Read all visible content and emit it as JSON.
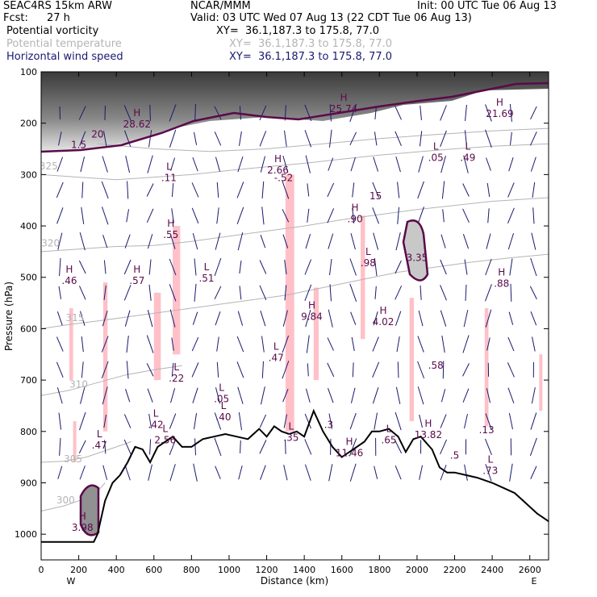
{
  "header": {
    "model": "SEAC4RS 15km ARW",
    "org": "NCAR/MMM",
    "init": "Init: 00 UTC Tue 06 Aug 13",
    "fcst_label": "Fcst:",
    "fcst_value": "27 h",
    "valid": "Valid: 03 UTC Wed 07 Aug 13 (22 CDT Tue 06 Aug 13)",
    "fields": [
      {
        "name": "Potential vorticity",
        "xy": "XY=  36.1,187.3 to 175.8, 77.0",
        "color": "#000000"
      },
      {
        "name": "Potential temperature",
        "xy": "XY=  36.1,187.3 to 175.8, 77.0",
        "color": "#b4b4b4"
      },
      {
        "name": "Horizontal wind speed",
        "xy": "XY=  36.1,187.3 to 175.8, 77.0",
        "color": "#191970"
      }
    ]
  },
  "chart_data": {
    "type": "contour_cross_section",
    "xlabel": "Distance (km)",
    "ylabel": "Pressure (hPa)",
    "xlim": [
      0,
      2700
    ],
    "ylim": [
      1050,
      100
    ],
    "x_ticks": [
      "0",
      "200",
      "400",
      "600",
      "800",
      "1000",
      "1200",
      "1400",
      "1600",
      "1800",
      "2000",
      "2200",
      "2400",
      "2600"
    ],
    "y_ticks": [
      "100",
      "200",
      "300",
      "400",
      "500",
      "600",
      "700",
      "800",
      "900",
      "1000"
    ],
    "x_end_labels": {
      "left": "W",
      "right": "E"
    },
    "theta_labels": [
      {
        "text": "325",
        "x": 40,
        "p": 290
      },
      {
        "text": "320",
        "x": 50,
        "p": 440
      },
      {
        "text": "315",
        "x": 180,
        "p": 585
      },
      {
        "text": "310",
        "x": 200,
        "p": 715
      },
      {
        "text": "305",
        "x": 170,
        "p": 860
      },
      {
        "text": "300",
        "x": 130,
        "p": 940
      }
    ],
    "terrain": [
      [
        0,
        1015
      ],
      [
        280,
        1015
      ],
      [
        300,
        1000
      ],
      [
        340,
        935
      ],
      [
        380,
        900
      ],
      [
        420,
        885
      ],
      [
        460,
        860
      ],
      [
        500,
        830
      ],
      [
        540,
        835
      ],
      [
        580,
        860
      ],
      [
        620,
        830
      ],
      [
        660,
        820
      ],
      [
        700,
        810
      ],
      [
        750,
        830
      ],
      [
        800,
        830
      ],
      [
        860,
        815
      ],
      [
        920,
        810
      ],
      [
        980,
        805
      ],
      [
        1040,
        810
      ],
      [
        1100,
        815
      ],
      [
        1160,
        795
      ],
      [
        1200,
        810
      ],
      [
        1240,
        790
      ],
      [
        1280,
        800
      ],
      [
        1320,
        805
      ],
      [
        1360,
        800
      ],
      [
        1400,
        810
      ],
      [
        1450,
        760
      ],
      [
        1500,
        800
      ],
      [
        1550,
        830
      ],
      [
        1600,
        850
      ],
      [
        1660,
        835
      ],
      [
        1720,
        820
      ],
      [
        1760,
        800
      ],
      [
        1800,
        800
      ],
      [
        1850,
        795
      ],
      [
        1900,
        810
      ],
      [
        1940,
        840
      ],
      [
        1980,
        815
      ],
      [
        2020,
        810
      ],
      [
        2080,
        835
      ],
      [
        2120,
        870
      ],
      [
        2160,
        880
      ],
      [
        2200,
        880
      ],
      [
        2260,
        885
      ],
      [
        2320,
        890
      ],
      [
        2400,
        900
      ],
      [
        2460,
        910
      ],
      [
        2520,
        920
      ],
      [
        2580,
        940
      ],
      [
        2640,
        960
      ],
      [
        2700,
        975
      ]
    ],
    "theta_isentropes": [
      {
        "theta": 300,
        "points": [
          [
            0,
            955
          ],
          [
            120,
            945
          ],
          [
            200,
            935
          ],
          [
            280,
            925
          ],
          [
            340,
            900
          ]
        ]
      },
      {
        "theta": 305,
        "points": [
          [
            0,
            860
          ],
          [
            120,
            858
          ],
          [
            240,
            850
          ],
          [
            360,
            835
          ],
          [
            480,
            820
          ]
        ]
      },
      {
        "theta": 310,
        "points": [
          [
            0,
            730
          ],
          [
            150,
            720
          ],
          [
            300,
            705
          ],
          [
            450,
            690
          ],
          [
            600,
            680
          ],
          [
            750,
            672
          ]
        ]
      },
      {
        "theta": 315,
        "points": [
          [
            0,
            600
          ],
          [
            150,
            592
          ],
          [
            300,
            585
          ],
          [
            500,
            575
          ],
          [
            700,
            565
          ],
          [
            900,
            555
          ],
          [
            1100,
            545
          ],
          [
            1300,
            535
          ],
          [
            1500,
            520
          ],
          [
            1700,
            505
          ],
          [
            1900,
            490
          ],
          [
            2100,
            480
          ],
          [
            2300,
            470
          ],
          [
            2500,
            462
          ],
          [
            2700,
            455
          ]
        ]
      },
      {
        "theta": 320,
        "points": [
          [
            0,
            450
          ],
          [
            200,
            445
          ],
          [
            400,
            440
          ],
          [
            600,
            438
          ],
          [
            800,
            430
          ],
          [
            1000,
            420
          ],
          [
            1200,
            410
          ],
          [
            1400,
            400
          ],
          [
            1600,
            388
          ],
          [
            1800,
            378
          ],
          [
            2000,
            368
          ],
          [
            2200,
            360
          ],
          [
            2400,
            352
          ],
          [
            2700,
            345
          ]
        ]
      },
      {
        "theta": 325,
        "points": [
          [
            0,
            300
          ],
          [
            200,
            305
          ],
          [
            400,
            310
          ],
          [
            600,
            305
          ],
          [
            800,
            300
          ],
          [
            1000,
            292
          ],
          [
            1200,
            285
          ],
          [
            1400,
            278
          ],
          [
            1600,
            270
          ],
          [
            1800,
            262
          ],
          [
            2000,
            256
          ],
          [
            2200,
            250
          ],
          [
            2400,
            245
          ],
          [
            2700,
            240
          ]
        ]
      },
      {
        "theta": 330,
        "points": [
          [
            300,
            240
          ],
          [
            600,
            250
          ],
          [
            900,
            255
          ],
          [
            1200,
            250
          ],
          [
            1500,
            240
          ],
          [
            1800,
            230
          ],
          [
            2100,
            222
          ],
          [
            2400,
            215
          ],
          [
            2700,
            210
          ]
        ]
      }
    ],
    "pv_levels_hl": [
      {
        "kind": "H",
        "value": "28.62",
        "x": 510,
        "p": 205
      },
      {
        "kind": "L",
        "value": ".11",
        "x": 680,
        "p": 310
      },
      {
        "kind": "H",
        "value": ".55",
        "x": 690,
        "p": 420
      },
      {
        "kind": "H",
        "value": ".46",
        "x": 150,
        "p": 510
      },
      {
        "kind": "H",
        "value": ".57",
        "x": 510,
        "p": 510
      },
      {
        "kind": "L",
        "value": ".51",
        "x": 880,
        "p": 505
      },
      {
        "kind": "H",
        "value": "2.66",
        "x": 1260,
        "p": 295
      },
      {
        "kind": "",
        "value": "-.52",
        "x": 1290,
        "p": 310
      },
      {
        "kind": "H",
        "value": "25.74",
        "x": 1610,
        "p": 175
      },
      {
        "kind": "H",
        "value": ".90",
        "x": 1670,
        "p": 390
      },
      {
        "kind": "L",
        "value": ".98",
        "x": 1740,
        "p": 475
      },
      {
        "kind": "",
        "value": "3.35",
        "x": 2000,
        "p": 465
      },
      {
        "kind": "L",
        "value": ".05",
        "x": 2100,
        "p": 270
      },
      {
        "kind": "L",
        "value": ".49",
        "x": 2270,
        "p": 270
      },
      {
        "kind": "H",
        "value": "21.69",
        "x": 2440,
        "p": 185
      },
      {
        "kind": "H",
        "value": ".88",
        "x": 2450,
        "p": 515
      },
      {
        "kind": "H",
        "value": "9.84",
        "x": 1440,
        "p": 580
      },
      {
        "kind": "H",
        "value": "4.02",
        "x": 1820,
        "p": 590
      },
      {
        "kind": "",
        "value": ".58",
        "x": 2100,
        "p": 675
      },
      {
        "kind": "L",
        "value": ".47",
        "x": 1250,
        "p": 660
      },
      {
        "kind": "L",
        "value": ".22",
        "x": 720,
        "p": 700
      },
      {
        "kind": "L",
        "value": ".05",
        "x": 960,
        "p": 740
      },
      {
        "kind": "L",
        "value": ".40",
        "x": 970,
        "p": 775
      },
      {
        "kind": "L",
        "value": ".42",
        "x": 610,
        "p": 790
      },
      {
        "kind": "L",
        "value": "2.56",
        "x": 660,
        "p": 820
      },
      {
        "kind": "L",
        "value": ".47",
        "x": 310,
        "p": 830
      },
      {
        "kind": "L",
        "value": ".35",
        "x": 1330,
        "p": 815
      },
      {
        "kind": "",
        "value": ".3",
        "x": 1530,
        "p": 790
      },
      {
        "kind": "L",
        "value": ".65",
        "x": 1850,
        "p": 820
      },
      {
        "kind": "H",
        "value": "13.82",
        "x": 2060,
        "p": 810
      },
      {
        "kind": "H",
        "value": "11.46",
        "x": 1640,
        "p": 845
      },
      {
        "kind": "",
        "value": ".13",
        "x": 2370,
        "p": 800
      },
      {
        "kind": "L",
        "value": ".73",
        "x": 2390,
        "p": 880
      },
      {
        "kind": "",
        "value": ".5",
        "x": 2200,
        "p": 850
      },
      {
        "kind": "H",
        "value": "3.98",
        "x": 220,
        "p": 990
      },
      {
        "kind": "",
        "value": "15",
        "x": 1780,
        "p": 345
      },
      {
        "kind": "",
        "value": "20",
        "x": 300,
        "p": 225
      },
      {
        "kind": "",
        "value": "1.5",
        "x": 200,
        "p": 245
      }
    ],
    "shading_note": "Gray-scale shading = potential vorticity (high PV aloft above ~250 hPa); pink patches = negative PV; dark purple contour = 2 PVU; blue contours/vectors = horizontal wind speed"
  },
  "colors": {
    "pv_contour": "#5a0a4a",
    "wind": "#191970",
    "theta": "#b4b4b4",
    "negative_pv": "#ffc0c8",
    "stratosphere_dark": "#404040"
  }
}
